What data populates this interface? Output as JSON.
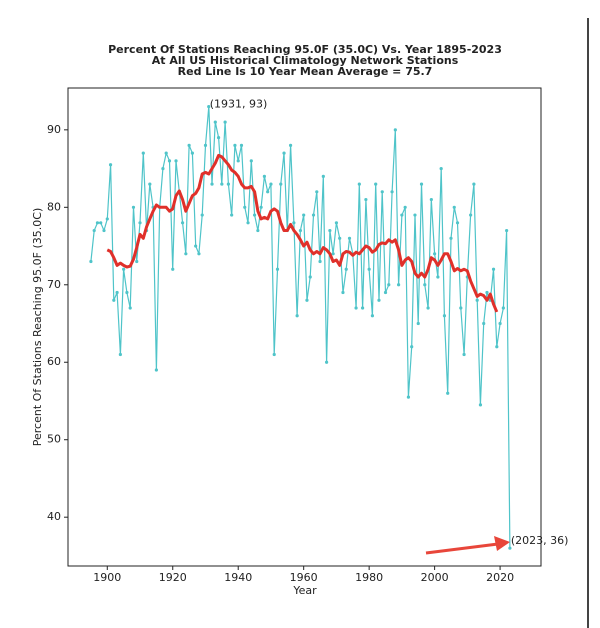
{
  "chart_data": {
    "type": "line",
    "title": [
      "Percent Of Stations Reaching 95.0F (35.0C) Vs. Year 1895-2023",
      "At All US Historical Climatology Network Stations",
      "Red Line Is 10 Year Mean  Average = 75.7"
    ],
    "xlabel": "Year",
    "ylabel": "Percent Of Stations Reaching 95.0F (35.0C)",
    "x": [
      1895,
      1896,
      1897,
      1898,
      1899,
      1900,
      1901,
      1902,
      1903,
      1904,
      1905,
      1906,
      1907,
      1908,
      1909,
      1910,
      1911,
      1912,
      1913,
      1914,
      1915,
      1916,
      1917,
      1918,
      1919,
      1920,
      1921,
      1922,
      1923,
      1924,
      1925,
      1926,
      1927,
      1928,
      1929,
      1930,
      1931,
      1932,
      1933,
      1934,
      1935,
      1936,
      1937,
      1938,
      1939,
      1940,
      1941,
      1942,
      1943,
      1944,
      1945,
      1946,
      1947,
      1948,
      1949,
      1950,
      1951,
      1952,
      1953,
      1954,
      1955,
      1956,
      1957,
      1958,
      1959,
      1960,
      1961,
      1962,
      1963,
      1964,
      1965,
      1966,
      1967,
      1968,
      1969,
      1970,
      1971,
      1972,
      1973,
      1974,
      1975,
      1976,
      1977,
      1978,
      1979,
      1980,
      1981,
      1982,
      1983,
      1984,
      1985,
      1986,
      1987,
      1988,
      1989,
      1990,
      1991,
      1992,
      1993,
      1994,
      1995,
      1996,
      1997,
      1998,
      1999,
      2000,
      2001,
      2002,
      2003,
      2004,
      2005,
      2006,
      2007,
      2008,
      2009,
      2010,
      2011,
      2012,
      2013,
      2014,
      2015,
      2016,
      2017,
      2018,
      2019,
      2020,
      2021,
      2022,
      2023
    ],
    "series": [
      {
        "color": "#4fc4c9",
        "markers": true,
        "width": 1.2,
        "values": [
          73,
          77,
          78,
          78,
          77,
          78.5,
          85.5,
          68,
          69,
          61,
          72,
          69,
          67,
          80,
          73,
          78,
          87,
          77,
          83,
          80,
          59,
          80,
          85,
          87,
          86,
          72,
          86,
          82,
          78,
          74,
          88,
          87,
          75,
          74,
          79,
          88,
          93,
          83,
          91,
          89,
          83,
          91,
          83,
          79,
          88,
          86,
          88,
          80,
          78,
          86,
          79,
          77,
          80,
          84,
          82,
          83,
          61,
          72,
          83,
          87,
          77,
          88,
          78,
          66,
          77,
          79,
          68,
          71,
          79,
          82,
          73,
          84,
          60,
          77,
          74,
          78,
          76,
          69,
          72,
          76,
          74,
          67,
          83,
          67,
          81,
          72,
          66,
          83,
          68,
          82,
          69,
          70,
          82,
          90,
          70,
          79,
          80,
          55.5,
          62,
          79,
          65,
          83,
          70,
          67,
          81,
          74,
          71,
          85,
          66,
          56,
          76,
          80,
          78,
          67,
          61,
          71,
          79,
          83,
          68,
          54.5,
          65,
          69,
          68,
          72,
          62,
          65,
          67,
          77,
          36
        ]
      },
      {
        "color": "#e0302a",
        "markers": false,
        "width": 3,
        "values": [
          null,
          null,
          null,
          null,
          null,
          74.5,
          74.3,
          73.5,
          72.5,
          72.8,
          72.5,
          72.3,
          72.4,
          73.3,
          74.8,
          76.5,
          76,
          77.5,
          78.5,
          79.5,
          80.3,
          80,
          80,
          80,
          79.5,
          79.8,
          81.5,
          82.1,
          81,
          79.5,
          80.5,
          81.5,
          81.8,
          82.5,
          84.3,
          84.5,
          84.3,
          85,
          85.7,
          86.7,
          86.5,
          86,
          85.5,
          84.8,
          84.5,
          84,
          83,
          82.5,
          82.5,
          82.7,
          82,
          79.5,
          78.5,
          78.7,
          78.5,
          79.5,
          79.8,
          79.5,
          78,
          77,
          77,
          77.8,
          77,
          76.5,
          75.8,
          75,
          75.5,
          74.5,
          74,
          74.3,
          74,
          74.8,
          74.5,
          74,
          73,
          73.2,
          72.5,
          74,
          74.3,
          74.2,
          73.8,
          74.2,
          74,
          74.5,
          75,
          74.8,
          74.2,
          74.5,
          75.2,
          75.4,
          75.3,
          75.8,
          75.5,
          75.8,
          74.5,
          72.5,
          73.2,
          73.5,
          73,
          71.5,
          71,
          71.5,
          71,
          72,
          73.5,
          73.2,
          72.5,
          73.2,
          74,
          74,
          73,
          71.8,
          72.1,
          71.8,
          72,
          71.8,
          70.5,
          69.5,
          68.5,
          68.8,
          68.6,
          68,
          68.8,
          67.5,
          66.5,
          null,
          null,
          null,
          null
        ]
      }
    ],
    "xlim": [
      1888,
      2032.5
    ],
    "ylim": [
      33.7,
      95.4
    ],
    "xticks": [
      1900,
      1920,
      1940,
      1960,
      1980,
      2000,
      2020
    ],
    "yticks": [
      40,
      50,
      60,
      70,
      80,
      90
    ],
    "annotations": [
      {
        "text": "(1931, 93)",
        "x": 1931,
        "y": 93
      },
      {
        "text": "(2023, 36)",
        "x": 2023,
        "y": 36
      }
    ]
  }
}
